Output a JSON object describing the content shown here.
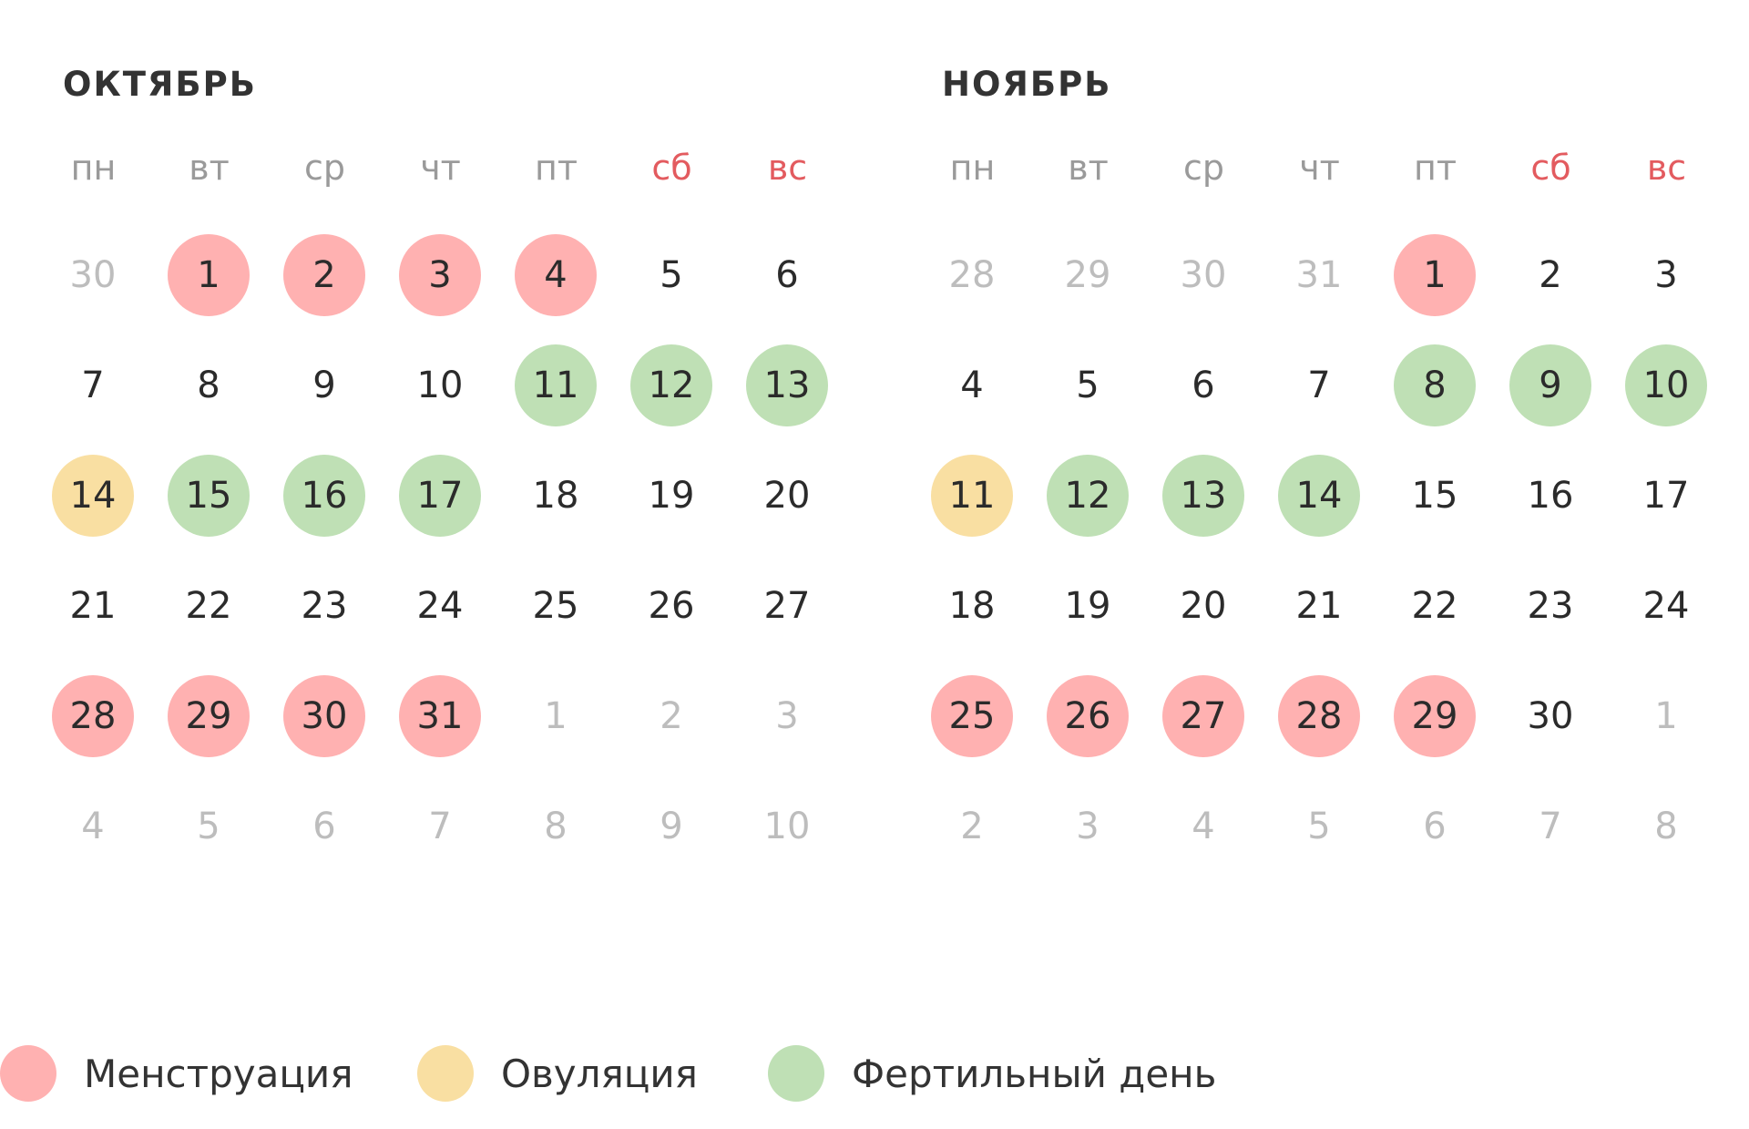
{
  "colors": {
    "menstruation": "#ffb1b1",
    "ovulation": "#f9dfa2",
    "fertile": "#bfe0b5",
    "weekend": "#e35b5f",
    "muted": "#bdbdbd"
  },
  "months": [
    {
      "title": "ОКТЯБРЬ",
      "weekdays": [
        {
          "label": "пн",
          "weekend": false
        },
        {
          "label": "вт",
          "weekend": false
        },
        {
          "label": "ср",
          "weekend": false
        },
        {
          "label": "чт",
          "weekend": false
        },
        {
          "label": "пт",
          "weekend": false
        },
        {
          "label": "сб",
          "weekend": true
        },
        {
          "label": "вс",
          "weekend": true
        }
      ],
      "weeks": [
        [
          {
            "day": "30",
            "other": true,
            "status": null
          },
          {
            "day": "1",
            "other": false,
            "status": "menstruation"
          },
          {
            "day": "2",
            "other": false,
            "status": "menstruation"
          },
          {
            "day": "3",
            "other": false,
            "status": "menstruation"
          },
          {
            "day": "4",
            "other": false,
            "status": "menstruation"
          },
          {
            "day": "5",
            "other": false,
            "status": null
          },
          {
            "day": "6",
            "other": false,
            "status": null
          }
        ],
        [
          {
            "day": "7",
            "other": false,
            "status": null
          },
          {
            "day": "8",
            "other": false,
            "status": null
          },
          {
            "day": "9",
            "other": false,
            "status": null
          },
          {
            "day": "10",
            "other": false,
            "status": null
          },
          {
            "day": "11",
            "other": false,
            "status": "fertile"
          },
          {
            "day": "12",
            "other": false,
            "status": "fertile"
          },
          {
            "day": "13",
            "other": false,
            "status": "fertile"
          }
        ],
        [
          {
            "day": "14",
            "other": false,
            "status": "ovulation"
          },
          {
            "day": "15",
            "other": false,
            "status": "fertile"
          },
          {
            "day": "16",
            "other": false,
            "status": "fertile"
          },
          {
            "day": "17",
            "other": false,
            "status": "fertile"
          },
          {
            "day": "18",
            "other": false,
            "status": null
          },
          {
            "day": "19",
            "other": false,
            "status": null
          },
          {
            "day": "20",
            "other": false,
            "status": null
          }
        ],
        [
          {
            "day": "21",
            "other": false,
            "status": null
          },
          {
            "day": "22",
            "other": false,
            "status": null
          },
          {
            "day": "23",
            "other": false,
            "status": null
          },
          {
            "day": "24",
            "other": false,
            "status": null
          },
          {
            "day": "25",
            "other": false,
            "status": null
          },
          {
            "day": "26",
            "other": false,
            "status": null
          },
          {
            "day": "27",
            "other": false,
            "status": null
          }
        ],
        [
          {
            "day": "28",
            "other": false,
            "status": "menstruation"
          },
          {
            "day": "29",
            "other": false,
            "status": "menstruation"
          },
          {
            "day": "30",
            "other": false,
            "status": "menstruation"
          },
          {
            "day": "31",
            "other": false,
            "status": "menstruation"
          },
          {
            "day": "1",
            "other": true,
            "status": null
          },
          {
            "day": "2",
            "other": true,
            "status": null
          },
          {
            "day": "3",
            "other": true,
            "status": null
          }
        ],
        [
          {
            "day": "4",
            "other": true,
            "status": null
          },
          {
            "day": "5",
            "other": true,
            "status": null
          },
          {
            "day": "6",
            "other": true,
            "status": null
          },
          {
            "day": "7",
            "other": true,
            "status": null
          },
          {
            "day": "8",
            "other": true,
            "status": null
          },
          {
            "day": "9",
            "other": true,
            "status": null
          },
          {
            "day": "10",
            "other": true,
            "status": null
          }
        ]
      ]
    },
    {
      "title": "НОЯБРЬ",
      "weekdays": [
        {
          "label": "пн",
          "weekend": false
        },
        {
          "label": "вт",
          "weekend": false
        },
        {
          "label": "ср",
          "weekend": false
        },
        {
          "label": "чт",
          "weekend": false
        },
        {
          "label": "пт",
          "weekend": false
        },
        {
          "label": "сб",
          "weekend": true
        },
        {
          "label": "вс",
          "weekend": true
        }
      ],
      "weeks": [
        [
          {
            "day": "28",
            "other": true,
            "status": null
          },
          {
            "day": "29",
            "other": true,
            "status": null
          },
          {
            "day": "30",
            "other": true,
            "status": null
          },
          {
            "day": "31",
            "other": true,
            "status": null
          },
          {
            "day": "1",
            "other": false,
            "status": "menstruation"
          },
          {
            "day": "2",
            "other": false,
            "status": null
          },
          {
            "day": "3",
            "other": false,
            "status": null
          }
        ],
        [
          {
            "day": "4",
            "other": false,
            "status": null
          },
          {
            "day": "5",
            "other": false,
            "status": null
          },
          {
            "day": "6",
            "other": false,
            "status": null
          },
          {
            "day": "7",
            "other": false,
            "status": null
          },
          {
            "day": "8",
            "other": false,
            "status": "fertile"
          },
          {
            "day": "9",
            "other": false,
            "status": "fertile"
          },
          {
            "day": "10",
            "other": false,
            "status": "fertile"
          }
        ],
        [
          {
            "day": "11",
            "other": false,
            "status": "ovulation"
          },
          {
            "day": "12",
            "other": false,
            "status": "fertile"
          },
          {
            "day": "13",
            "other": false,
            "status": "fertile"
          },
          {
            "day": "14",
            "other": false,
            "status": "fertile"
          },
          {
            "day": "15",
            "other": false,
            "status": null
          },
          {
            "day": "16",
            "other": false,
            "status": null
          },
          {
            "day": "17",
            "other": false,
            "status": null
          }
        ],
        [
          {
            "day": "18",
            "other": false,
            "status": null
          },
          {
            "day": "19",
            "other": false,
            "status": null
          },
          {
            "day": "20",
            "other": false,
            "status": null
          },
          {
            "day": "21",
            "other": false,
            "status": null
          },
          {
            "day": "22",
            "other": false,
            "status": null
          },
          {
            "day": "23",
            "other": false,
            "status": null
          },
          {
            "day": "24",
            "other": false,
            "status": null
          }
        ],
        [
          {
            "day": "25",
            "other": false,
            "status": "menstruation"
          },
          {
            "day": "26",
            "other": false,
            "status": "menstruation"
          },
          {
            "day": "27",
            "other": false,
            "status": "menstruation"
          },
          {
            "day": "28",
            "other": false,
            "status": "menstruation"
          },
          {
            "day": "29",
            "other": false,
            "status": "menstruation"
          },
          {
            "day": "30",
            "other": false,
            "status": null
          },
          {
            "day": "1",
            "other": true,
            "status": null
          }
        ],
        [
          {
            "day": "2",
            "other": true,
            "status": null
          },
          {
            "day": "3",
            "other": true,
            "status": null
          },
          {
            "day": "4",
            "other": true,
            "status": null
          },
          {
            "day": "5",
            "other": true,
            "status": null
          },
          {
            "day": "6",
            "other": true,
            "status": null
          },
          {
            "day": "7",
            "other": true,
            "status": null
          },
          {
            "day": "8",
            "other": true,
            "status": null
          }
        ]
      ]
    }
  ],
  "legend": [
    {
      "key": "menstruation",
      "label": "Менструация"
    },
    {
      "key": "ovulation",
      "label": "Овуляция"
    },
    {
      "key": "fertile",
      "label": "Фертильный день"
    }
  ]
}
